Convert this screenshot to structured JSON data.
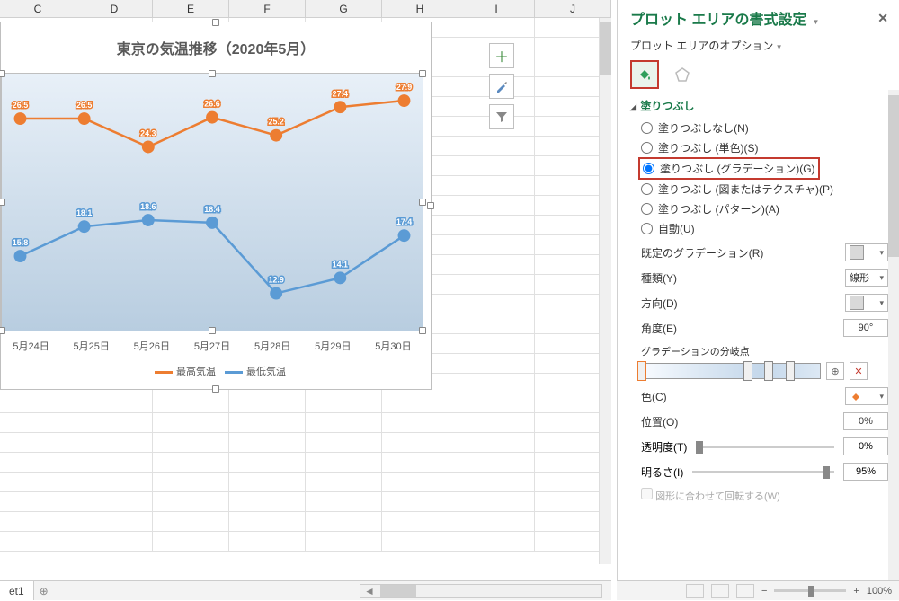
{
  "columns": [
    "C",
    "D",
    "E",
    "F",
    "G",
    "H",
    "I",
    "J"
  ],
  "chart": {
    "title": "東京の気温推移（2020年5月）",
    "type": "line",
    "x_categories": [
      "5月24日",
      "5月25日",
      "5月26日",
      "5月27日",
      "5月28日",
      "5月29日",
      "5月30日"
    ],
    "series": [
      {
        "name": "最高気温",
        "color": "#ed7d31",
        "values": [
          26.5,
          26.5,
          24.3,
          26.6,
          25.2,
          27.4,
          27.9
        ],
        "marker": "circle",
        "line_width": 2.5,
        "marker_size": 7
      },
      {
        "name": "最低気温",
        "color": "#5b9bd5",
        "values": [
          15.8,
          18.1,
          18.6,
          18.4,
          12.9,
          14.1,
          17.4
        ],
        "marker": "circle",
        "line_width": 2.5,
        "marker_size": 7
      }
    ],
    "ylim": [
      10,
      30
    ],
    "plot_bg_gradient": [
      "#e8f0f8",
      "#b8cde0"
    ],
    "label_fontsize": 9,
    "label_color": "#ffffff",
    "title_fontsize": 16,
    "title_color": "#595959",
    "axis_color": "#595959"
  },
  "chart_buttons": {
    "plus": "+",
    "brush": "brush-icon",
    "filter": "filter-icon"
  },
  "sheet_tab": "et1",
  "pane": {
    "title": "プロット エリアの書式設定",
    "subtitle": "プロット エリアのオプション",
    "section_fill": "塗りつぶし",
    "radios": {
      "none": "塗りつぶしなし(N)",
      "solid": "塗りつぶし (単色)(S)",
      "gradient": "塗りつぶし (グラデーション)(G)",
      "picture": "塗りつぶし (図またはテクスチャ)(P)",
      "pattern": "塗りつぶし (パターン)(A)",
      "auto": "自動(U)"
    },
    "selected_radio": "gradient",
    "preset_label": "既定のグラデーション(R)",
    "type_label": "種類(Y)",
    "type_value": "線形",
    "direction_label": "方向(D)",
    "angle_label": "角度(E)",
    "angle_value": "90°",
    "stops_label": "グラデーションの分岐点",
    "stop_positions": [
      0,
      60,
      72,
      84
    ],
    "color_label": "色(C)",
    "position_label": "位置(O)",
    "position_value": "0%",
    "transparency_label": "透明度(T)",
    "transparency_value": "0%",
    "brightness_label": "明るさ(I)",
    "brightness_value": "95%",
    "rotate_label": "図形に合わせて回転する(W)"
  },
  "status": {
    "zoom": "100%"
  }
}
